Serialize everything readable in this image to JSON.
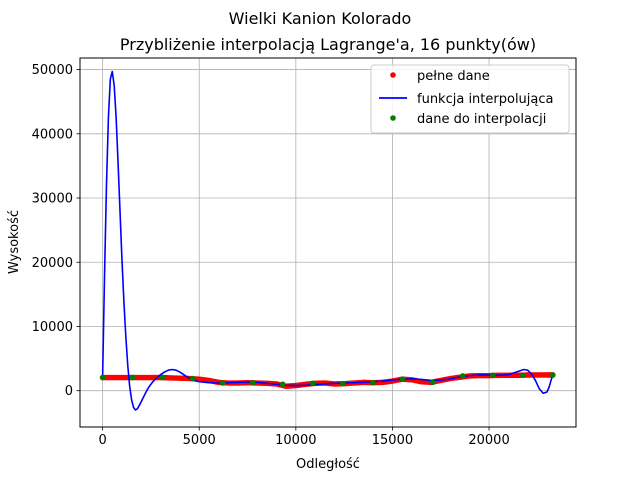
{
  "chart_data": {
    "type": "line",
    "title": "Wielki Kanion Kolorado",
    "subtitle": "Przybliżenie interpolacją Lagrange'a, 16 punkty(ów)",
    "xlabel": "Odległość",
    "ylabel": "Wysokość",
    "xlim": [
      -1170,
      24500
    ],
    "ylim": [
      -5650,
      51800
    ],
    "xticks": [
      0,
      5000,
      10000,
      15000,
      20000
    ],
    "yticks": [
      0,
      10000,
      20000,
      30000,
      40000,
      50000
    ],
    "grid": true,
    "legend_position": "top-right",
    "series": [
      {
        "name": "pełne dane",
        "kind": "markers",
        "color": "#ff0000",
        "x": [
          0,
          500,
          1000,
          1500,
          2000,
          2500,
          3000,
          3500,
          4000,
          4500,
          5000,
          5500,
          6000,
          6500,
          7000,
          7500,
          8000,
          8500,
          9000,
          9500,
          10000,
          10500,
          11000,
          11500,
          12000,
          12500,
          13000,
          13500,
          14000,
          14500,
          15000,
          15500,
          16000,
          16500,
          17000,
          17500,
          18000,
          18500,
          19000,
          19500,
          20000,
          20500,
          21000,
          21500,
          22000,
          22500,
          23000,
          23300
        ],
        "y": [
          2050,
          2050,
          2050,
          2050,
          2050,
          2050,
          2050,
          2000,
          1950,
          1900,
          1800,
          1600,
          1300,
          1200,
          1200,
          1250,
          1200,
          1150,
          1050,
          700,
          800,
          1000,
          1150,
          1200,
          1050,
          1100,
          1200,
          1300,
          1250,
          1300,
          1500,
          1800,
          1700,
          1400,
          1300,
          1600,
          1900,
          2100,
          2300,
          2350,
          2350,
          2400,
          2400,
          2400,
          2450,
          2450,
          2450,
          2450
        ]
      },
      {
        "name": "funkcja interpolująca",
        "kind": "line",
        "color": "#0000ff",
        "x": [
          0,
          100,
          200,
          300,
          400,
          500,
          600,
          700,
          800,
          900,
          1000,
          1100,
          1200,
          1300,
          1400,
          1500,
          1600,
          1700,
          1800,
          1900,
          2000,
          2100,
          2200,
          2300,
          2400,
          2500,
          2600,
          2800,
          3000,
          3200,
          3400,
          3600,
          3800,
          4000,
          4200,
          4400,
          4600,
          4800,
          5000,
          5500,
          6000,
          6500,
          7000,
          7500,
          8000,
          8500,
          9000,
          9500,
          10000,
          10500,
          11000,
          11500,
          12000,
          12500,
          13000,
          13500,
          14000,
          14500,
          15000,
          15500,
          16000,
          16500,
          17000,
          17500,
          18000,
          18500,
          19000,
          19500,
          20000,
          20500,
          21000,
          21400,
          21800,
          22000,
          22200,
          22400,
          22600,
          22800,
          23000,
          23100,
          23200,
          23300
        ],
        "y": [
          2050,
          18000,
          32000,
          42500,
          48500,
          49700,
          47500,
          42500,
          35500,
          28000,
          20500,
          14000,
          8500,
          4000,
          700,
          -1400,
          -2600,
          -3000,
          -2800,
          -2300,
          -1700,
          -1100,
          -500,
          100,
          600,
          1000,
          1400,
          2000,
          2500,
          2900,
          3200,
          3300,
          3200,
          2900,
          2500,
          2100,
          1800,
          1550,
          1400,
          1250,
          1200,
          1250,
          1300,
          1350,
          1300,
          1150,
          1000,
          850,
          800,
          850,
          950,
          1050,
          1150,
          1200,
          1250,
          1300,
          1400,
          1500,
          1650,
          1800,
          1850,
          1750,
          1600,
          1650,
          1850,
          2150,
          2350,
          2450,
          2450,
          2400,
          2500,
          2900,
          3300,
          3200,
          2600,
          1600,
          300,
          -400,
          -200,
          500,
          1500,
          2500
        ]
      },
      {
        "name": "dane do interpolacji",
        "kind": "markers",
        "color": "#008000",
        "x": [
          0,
          1553,
          3107,
          4660,
          6213,
          7767,
          9320,
          10873,
          12427,
          13980,
          15533,
          17087,
          18640,
          20193,
          21747,
          23300
        ],
        "y": [
          2050,
          2050,
          2050,
          1900,
          1200,
          1250,
          1000,
          1150,
          1100,
          1250,
          1800,
          1300,
          2300,
          2400,
          2400,
          2450
        ]
      }
    ]
  }
}
